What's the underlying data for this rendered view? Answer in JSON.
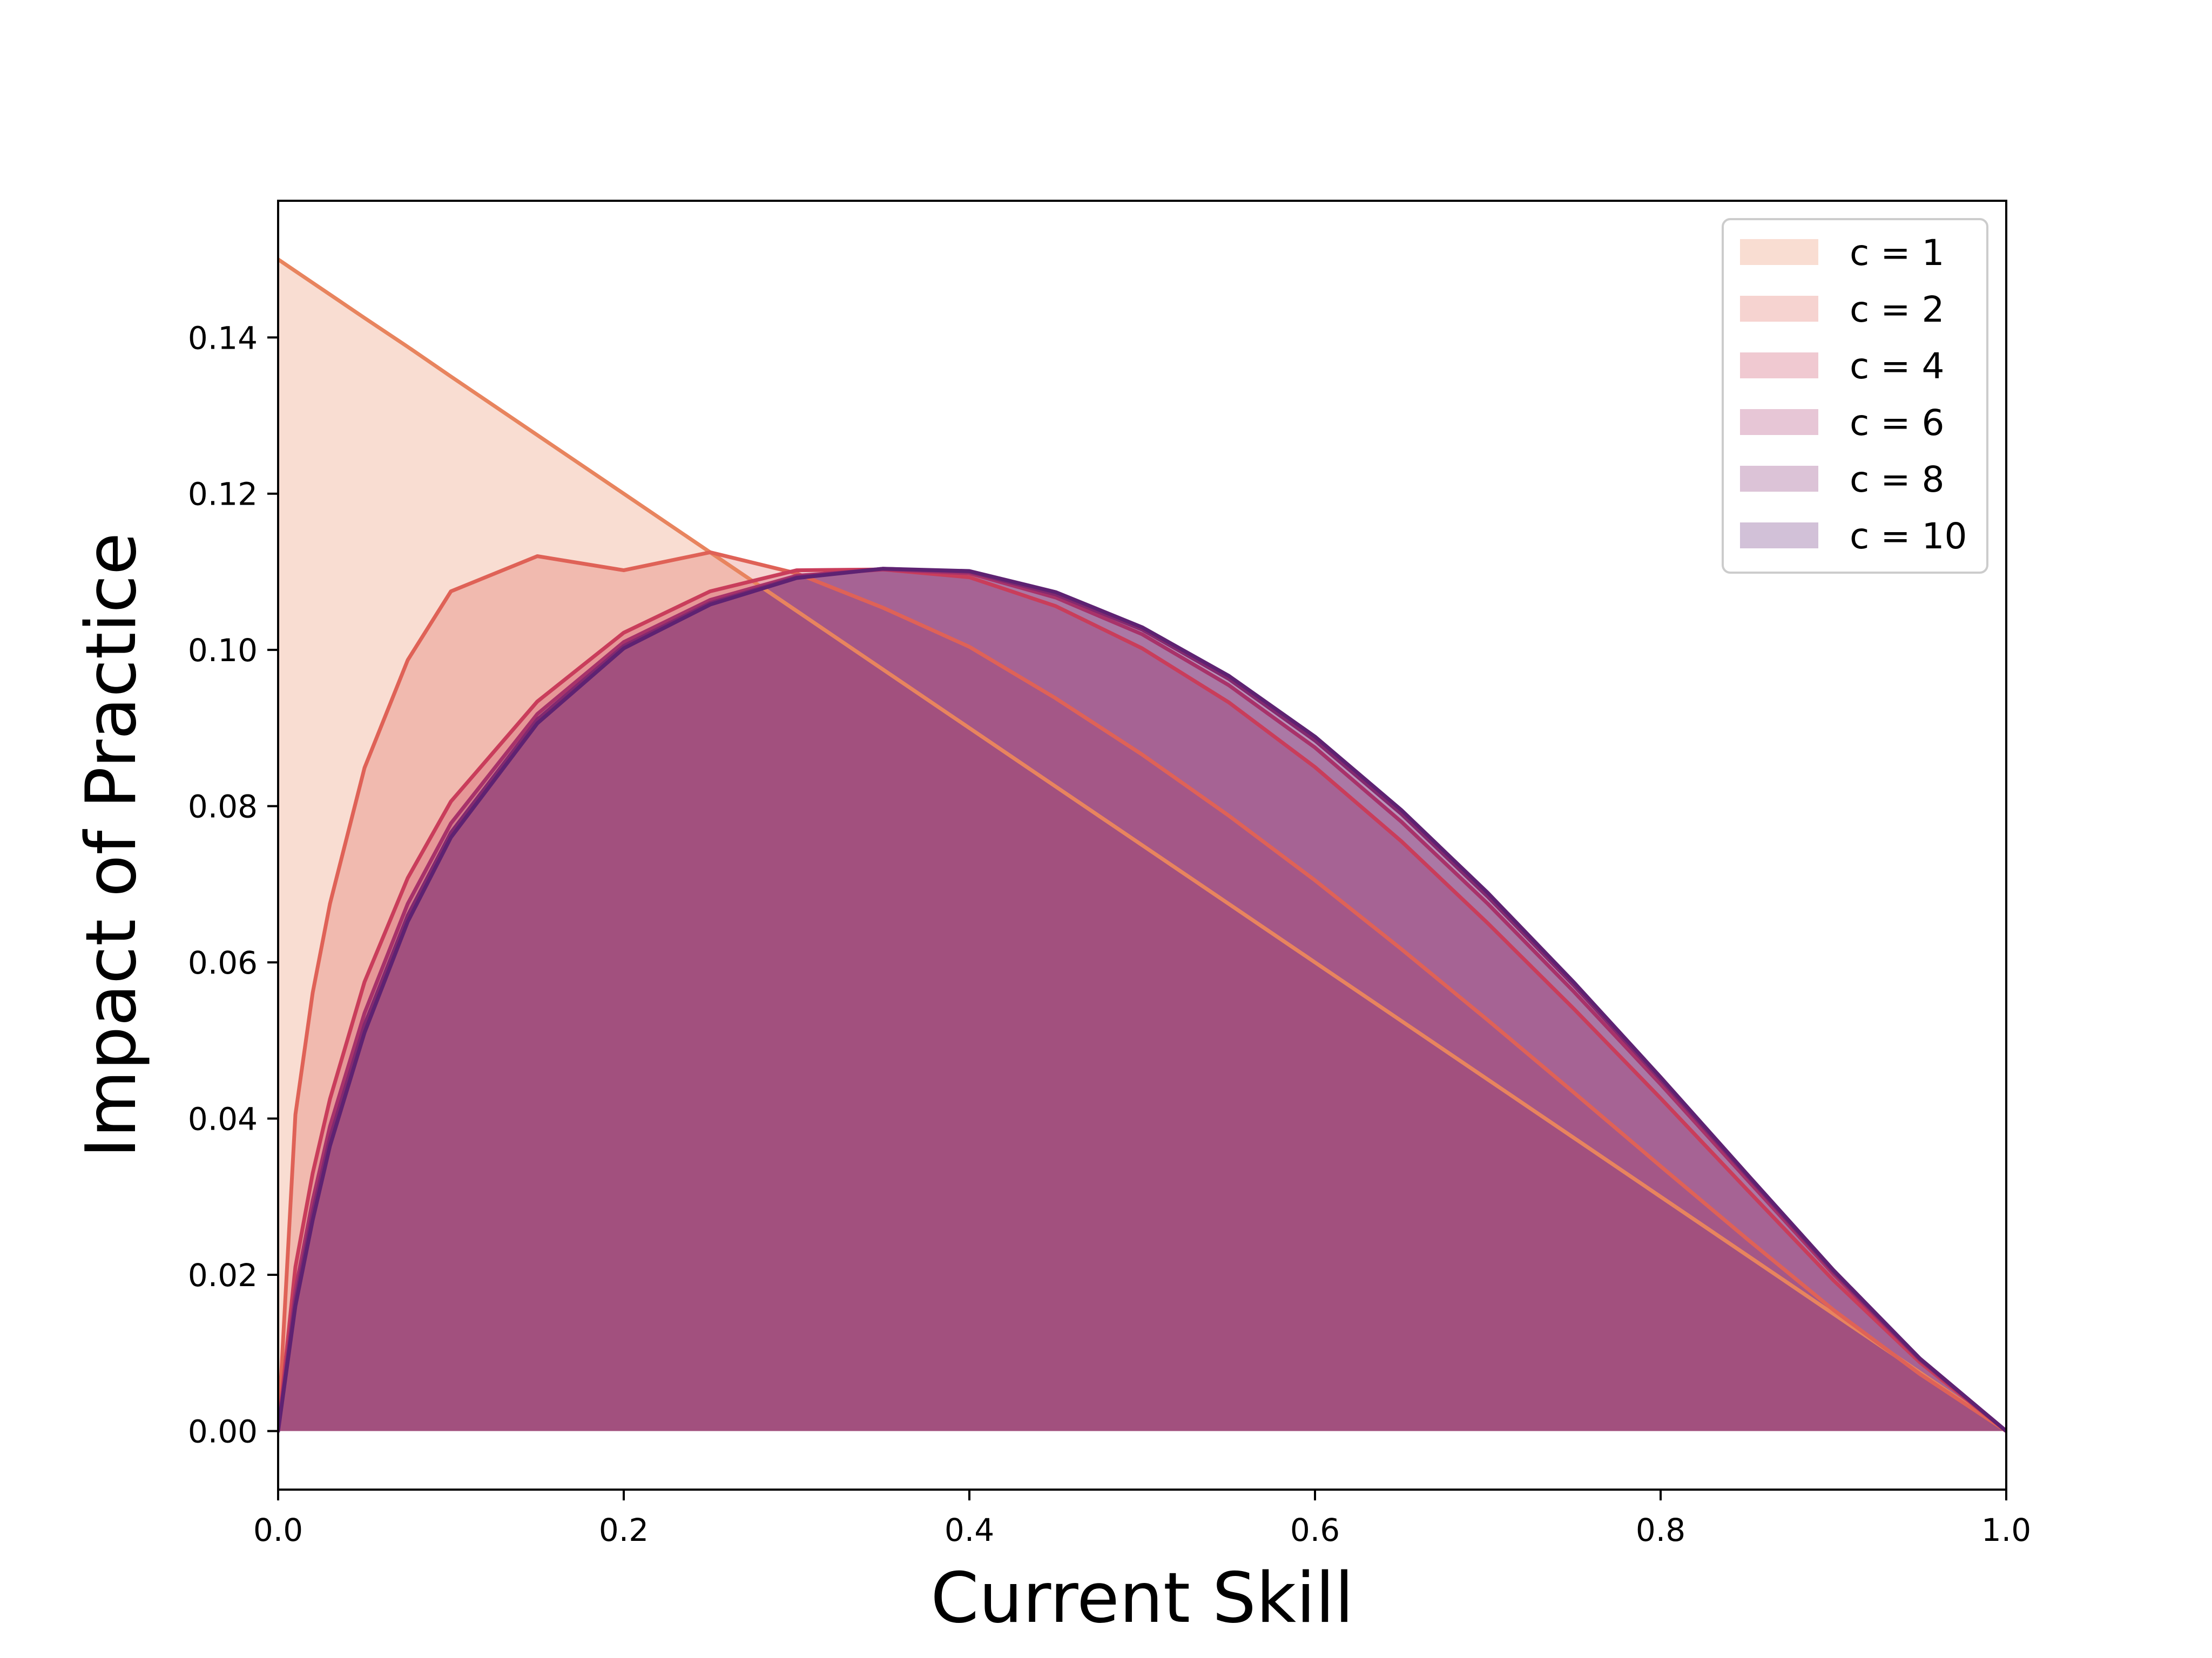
{
  "chart_data": {
    "type": "area",
    "xlabel": "Current Skill",
    "ylabel": "Impact of Practice",
    "xlim": [
      0.0,
      1.0
    ],
    "ylim": [
      -0.0075,
      0.1575
    ],
    "x_ticks": [
      "0.0",
      "0.2",
      "0.4",
      "0.6",
      "0.8",
      "1.0"
    ],
    "y_ticks": [
      "0.00",
      "0.02",
      "0.04",
      "0.06",
      "0.08",
      "0.10",
      "0.12",
      "0.14"
    ],
    "grid": false,
    "legend_position": "top-right",
    "x": [
      0.0,
      0.01,
      0.02,
      0.03,
      0.05,
      0.075,
      0.1,
      0.15,
      0.2,
      0.25,
      0.3,
      0.35,
      0.4,
      0.45,
      0.5,
      0.55,
      0.6,
      0.65,
      0.7,
      0.75,
      0.8,
      0.85,
      0.9,
      0.95,
      1.0
    ],
    "series": [
      {
        "name": "c = 1",
        "color": "#e8845e",
        "fill_opacity": 0.28,
        "values": [
          0.15,
          0.1485,
          0.147,
          0.1455,
          0.1425,
          0.1388,
          0.135,
          0.1275,
          0.12,
          0.1125,
          0.105,
          0.0975,
          0.09,
          0.0825,
          0.075,
          0.0675,
          0.06,
          0.0525,
          0.045,
          0.0375,
          0.03,
          0.0225,
          0.015,
          0.0075,
          0.0
        ]
      },
      {
        "name": "c = 2",
        "color": "#df6257",
        "fill_opacity": 0.28,
        "values": [
          0.0,
          0.0405,
          0.0561,
          0.0675,
          0.0849,
          0.0987,
          0.1075,
          0.112,
          0.1102,
          0.1125,
          0.1098,
          0.1054,
          0.1004,
          0.0938,
          0.0866,
          0.0788,
          0.0705,
          0.0617,
          0.0526,
          0.0433,
          0.0339,
          0.0246,
          0.0155,
          0.0073,
          0.0
        ]
      },
      {
        "name": "c = 4",
        "color": "#c93d5b",
        "fill_opacity": 0.28,
        "values": [
          0.0,
          0.021,
          0.033,
          0.0425,
          0.0575,
          0.0708,
          0.0806,
          0.0934,
          0.1022,
          0.1075,
          0.1102,
          0.1103,
          0.1093,
          0.1056,
          0.1002,
          0.0933,
          0.085,
          0.0755,
          0.065,
          0.054,
          0.0426,
          0.0309,
          0.0193,
          0.0088,
          0.0
        ]
      },
      {
        "name": "c = 6",
        "color": "#a8326a",
        "fill_opacity": 0.28,
        "values": [
          0.0,
          0.018,
          0.0295,
          0.039,
          0.0535,
          0.0675,
          0.0778,
          0.0918,
          0.101,
          0.1064,
          0.1095,
          0.1103,
          0.1098,
          0.1067,
          0.102,
          0.0955,
          0.0875,
          0.078,
          0.0675,
          0.0562,
          0.0444,
          0.0322,
          0.0201,
          0.0091,
          0.0
        ]
      },
      {
        "name": "c = 8",
        "color": "#83296f",
        "fill_opacity": 0.28,
        "values": [
          0.0,
          0.0168,
          0.028,
          0.0375,
          0.052,
          0.066,
          0.0766,
          0.0911,
          0.1005,
          0.106,
          0.1093,
          0.1104,
          0.11,
          0.1071,
          0.1026,
          0.0963,
          0.0884,
          0.079,
          0.0684,
          0.057,
          0.045,
          0.0327,
          0.0204,
          0.0092,
          0.0
        ]
      },
      {
        "name": "c = 10",
        "color": "#5e2272",
        "fill_opacity": 0.28,
        "values": [
          0.0,
          0.016,
          0.027,
          0.0365,
          0.051,
          0.0652,
          0.076,
          0.0906,
          0.1002,
          0.1058,
          0.1092,
          0.1104,
          0.1101,
          0.1074,
          0.1029,
          0.0967,
          0.0889,
          0.0795,
          0.0689,
          0.0574,
          0.0453,
          0.0329,
          0.0206,
          0.0093,
          0.0
        ]
      }
    ]
  }
}
